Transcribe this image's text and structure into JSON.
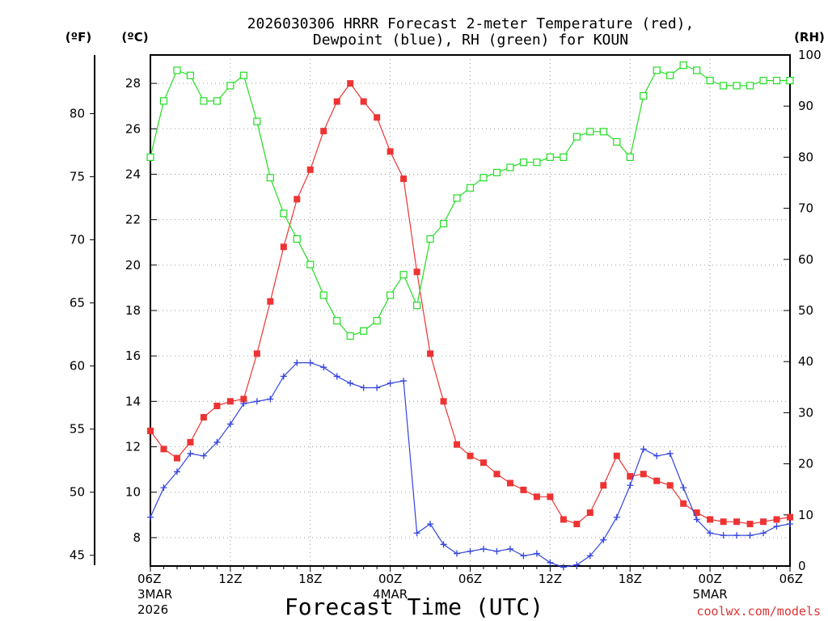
{
  "chart_data": {
    "type": "line",
    "title_line1": "2026030306 HRRR Forecast 2-meter Temperature (red),",
    "title_line2": "Dewpoint (blue), RH (green) for KOUN",
    "xlabel": "Forecast Time (UTC)",
    "credit": "coolwx.com/models",
    "units": {
      "f": "(ºF)",
      "c": "(ºC)",
      "rh": "(RH)"
    },
    "x_range_hours": [
      0,
      48
    ],
    "c_range": [
      6.75,
      29.25
    ],
    "f_ticks": [
      45,
      50,
      55,
      60,
      65,
      70,
      75,
      80
    ],
    "c_ticks": [
      8,
      10,
      12,
      14,
      16,
      18,
      20,
      22,
      24,
      26,
      28
    ],
    "rh_ticks": [
      0,
      10,
      20,
      30,
      40,
      50,
      60,
      70,
      80,
      90,
      100
    ],
    "rh_range": [
      0,
      100
    ],
    "x_ticks": [
      {
        "h": 0,
        "label": "06Z",
        "sub1": "3MAR",
        "sub2": "2026"
      },
      {
        "h": 6,
        "label": "12Z",
        "sub1": "",
        "sub2": ""
      },
      {
        "h": 12,
        "label": "18Z",
        "sub1": "",
        "sub2": ""
      },
      {
        "h": 18,
        "label": "00Z",
        "sub1": "4MAR",
        "sub2": ""
      },
      {
        "h": 24,
        "label": "06Z",
        "sub1": "",
        "sub2": ""
      },
      {
        "h": 30,
        "label": "12Z",
        "sub1": "",
        "sub2": ""
      },
      {
        "h": 36,
        "label": "18Z",
        "sub1": "",
        "sub2": ""
      },
      {
        "h": 42,
        "label": "00Z",
        "sub1": "5MAR",
        "sub2": ""
      },
      {
        "h": 48,
        "label": "06Z",
        "sub1": "",
        "sub2": ""
      }
    ],
    "series": [
      {
        "name": "Temperature",
        "color": "#ee3333",
        "marker": "filled-square",
        "unit": "C",
        "values": [
          12.7,
          11.9,
          11.5,
          12.2,
          13.3,
          13.8,
          14.0,
          14.1,
          16.1,
          18.4,
          20.8,
          22.9,
          24.2,
          25.9,
          27.2,
          28.0,
          27.2,
          26.5,
          25.0,
          23.8,
          19.7,
          16.1,
          14.0,
          12.1,
          11.6,
          11.3,
          10.8,
          10.4,
          10.1,
          9.8,
          9.8,
          8.8,
          8.6,
          9.1,
          10.3,
          11.6,
          10.7,
          10.8,
          10.5,
          10.3,
          9.5,
          9.1,
          8.8,
          8.7,
          8.7,
          8.6,
          8.7,
          8.8,
          8.9
        ]
      },
      {
        "name": "Dewpoint",
        "color": "#3344dd",
        "marker": "plus",
        "unit": "C",
        "values": [
          8.9,
          10.2,
          10.9,
          11.7,
          11.6,
          12.2,
          13.0,
          13.9,
          14.0,
          14.1,
          15.1,
          15.7,
          15.7,
          15.5,
          15.1,
          14.8,
          14.6,
          14.6,
          14.8,
          14.9,
          8.2,
          8.6,
          7.7,
          7.3,
          7.4,
          7.5,
          7.4,
          7.5,
          7.2,
          7.3,
          6.9,
          6.7,
          6.8,
          7.2,
          7.9,
          8.9,
          10.3,
          11.9,
          11.6,
          11.7,
          10.2,
          8.8,
          8.2,
          8.1,
          8.1,
          8.1,
          8.2,
          8.5,
          8.6
        ]
      },
      {
        "name": "RH",
        "color": "#22dd22",
        "marker": "open-square",
        "unit": "%",
        "values": [
          80,
          91,
          97,
          96,
          91,
          91,
          94,
          96,
          87,
          76,
          69,
          64,
          59,
          53,
          48,
          45,
          46,
          48,
          53,
          57,
          51,
          64,
          67,
          72,
          74,
          76,
          77,
          78,
          79,
          79,
          80,
          80,
          84,
          85,
          85,
          83,
          80,
          92,
          97,
          96,
          98,
          97,
          95,
          94,
          94,
          94,
          95,
          95,
          95
        ]
      }
    ]
  }
}
